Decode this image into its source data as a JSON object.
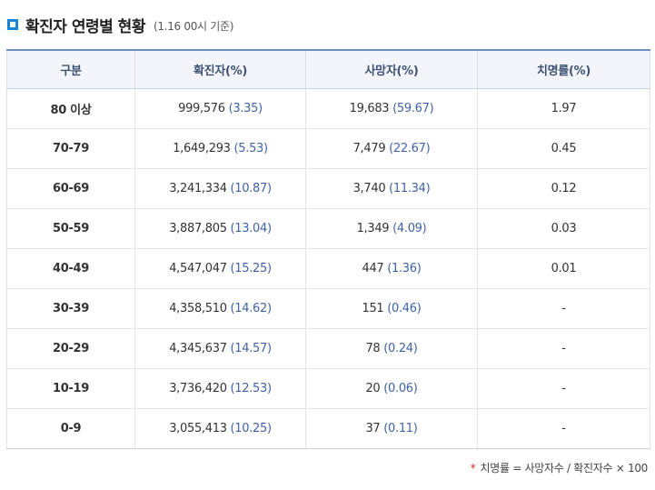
{
  "header": {
    "title": "확진자 연령별 현황",
    "note": "(1.16 00시 기준)"
  },
  "table": {
    "columns": [
      "구분",
      "확진자(%)",
      "사망자(%)",
      "치명률(%)"
    ],
    "rows": [
      {
        "age": "80 이상",
        "cases": "999,576",
        "cases_pct": "(3.35)",
        "deaths": "19,683",
        "deaths_pct": "(59.67)",
        "fatality": "1.97"
      },
      {
        "age": "70-79",
        "cases": "1,649,293",
        "cases_pct": "(5.53)",
        "deaths": "7,479",
        "deaths_pct": "(22.67)",
        "fatality": "0.45"
      },
      {
        "age": "60-69",
        "cases": "3,241,334",
        "cases_pct": "(10.87)",
        "deaths": "3,740",
        "deaths_pct": "(11.34)",
        "fatality": "0.12"
      },
      {
        "age": "50-59",
        "cases": "3,887,805",
        "cases_pct": "(13.04)",
        "deaths": "1,349",
        "deaths_pct": "(4.09)",
        "fatality": "0.03"
      },
      {
        "age": "40-49",
        "cases": "4,547,047",
        "cases_pct": "(15.25)",
        "deaths": "447",
        "deaths_pct": "(1.36)",
        "fatality": "0.01"
      },
      {
        "age": "30-39",
        "cases": "4,358,510",
        "cases_pct": "(14.62)",
        "deaths": "151",
        "deaths_pct": "(0.46)",
        "fatality": "-"
      },
      {
        "age": "20-29",
        "cases": "4,345,637",
        "cases_pct": "(14.57)",
        "deaths": "78",
        "deaths_pct": "(0.24)",
        "fatality": "-"
      },
      {
        "age": "10-19",
        "cases": "3,736,420",
        "cases_pct": "(12.53)",
        "deaths": "20",
        "deaths_pct": "(0.06)",
        "fatality": "-"
      },
      {
        "age": "0-9",
        "cases": "3,055,413",
        "cases_pct": "(10.25)",
        "deaths": "37",
        "deaths_pct": "(0.11)",
        "fatality": "-"
      }
    ]
  },
  "footnote": {
    "marker": "*",
    "text": "치명률 = 사망자수 / 확진자수 × 100"
  },
  "colors": {
    "accent": "#1a85d6",
    "header_text": "#3e5373",
    "percent_text": "#3f63a8",
    "footnote_marker": "#e02828"
  },
  "icons": {
    "title_bullet": "square-bullet-icon"
  }
}
